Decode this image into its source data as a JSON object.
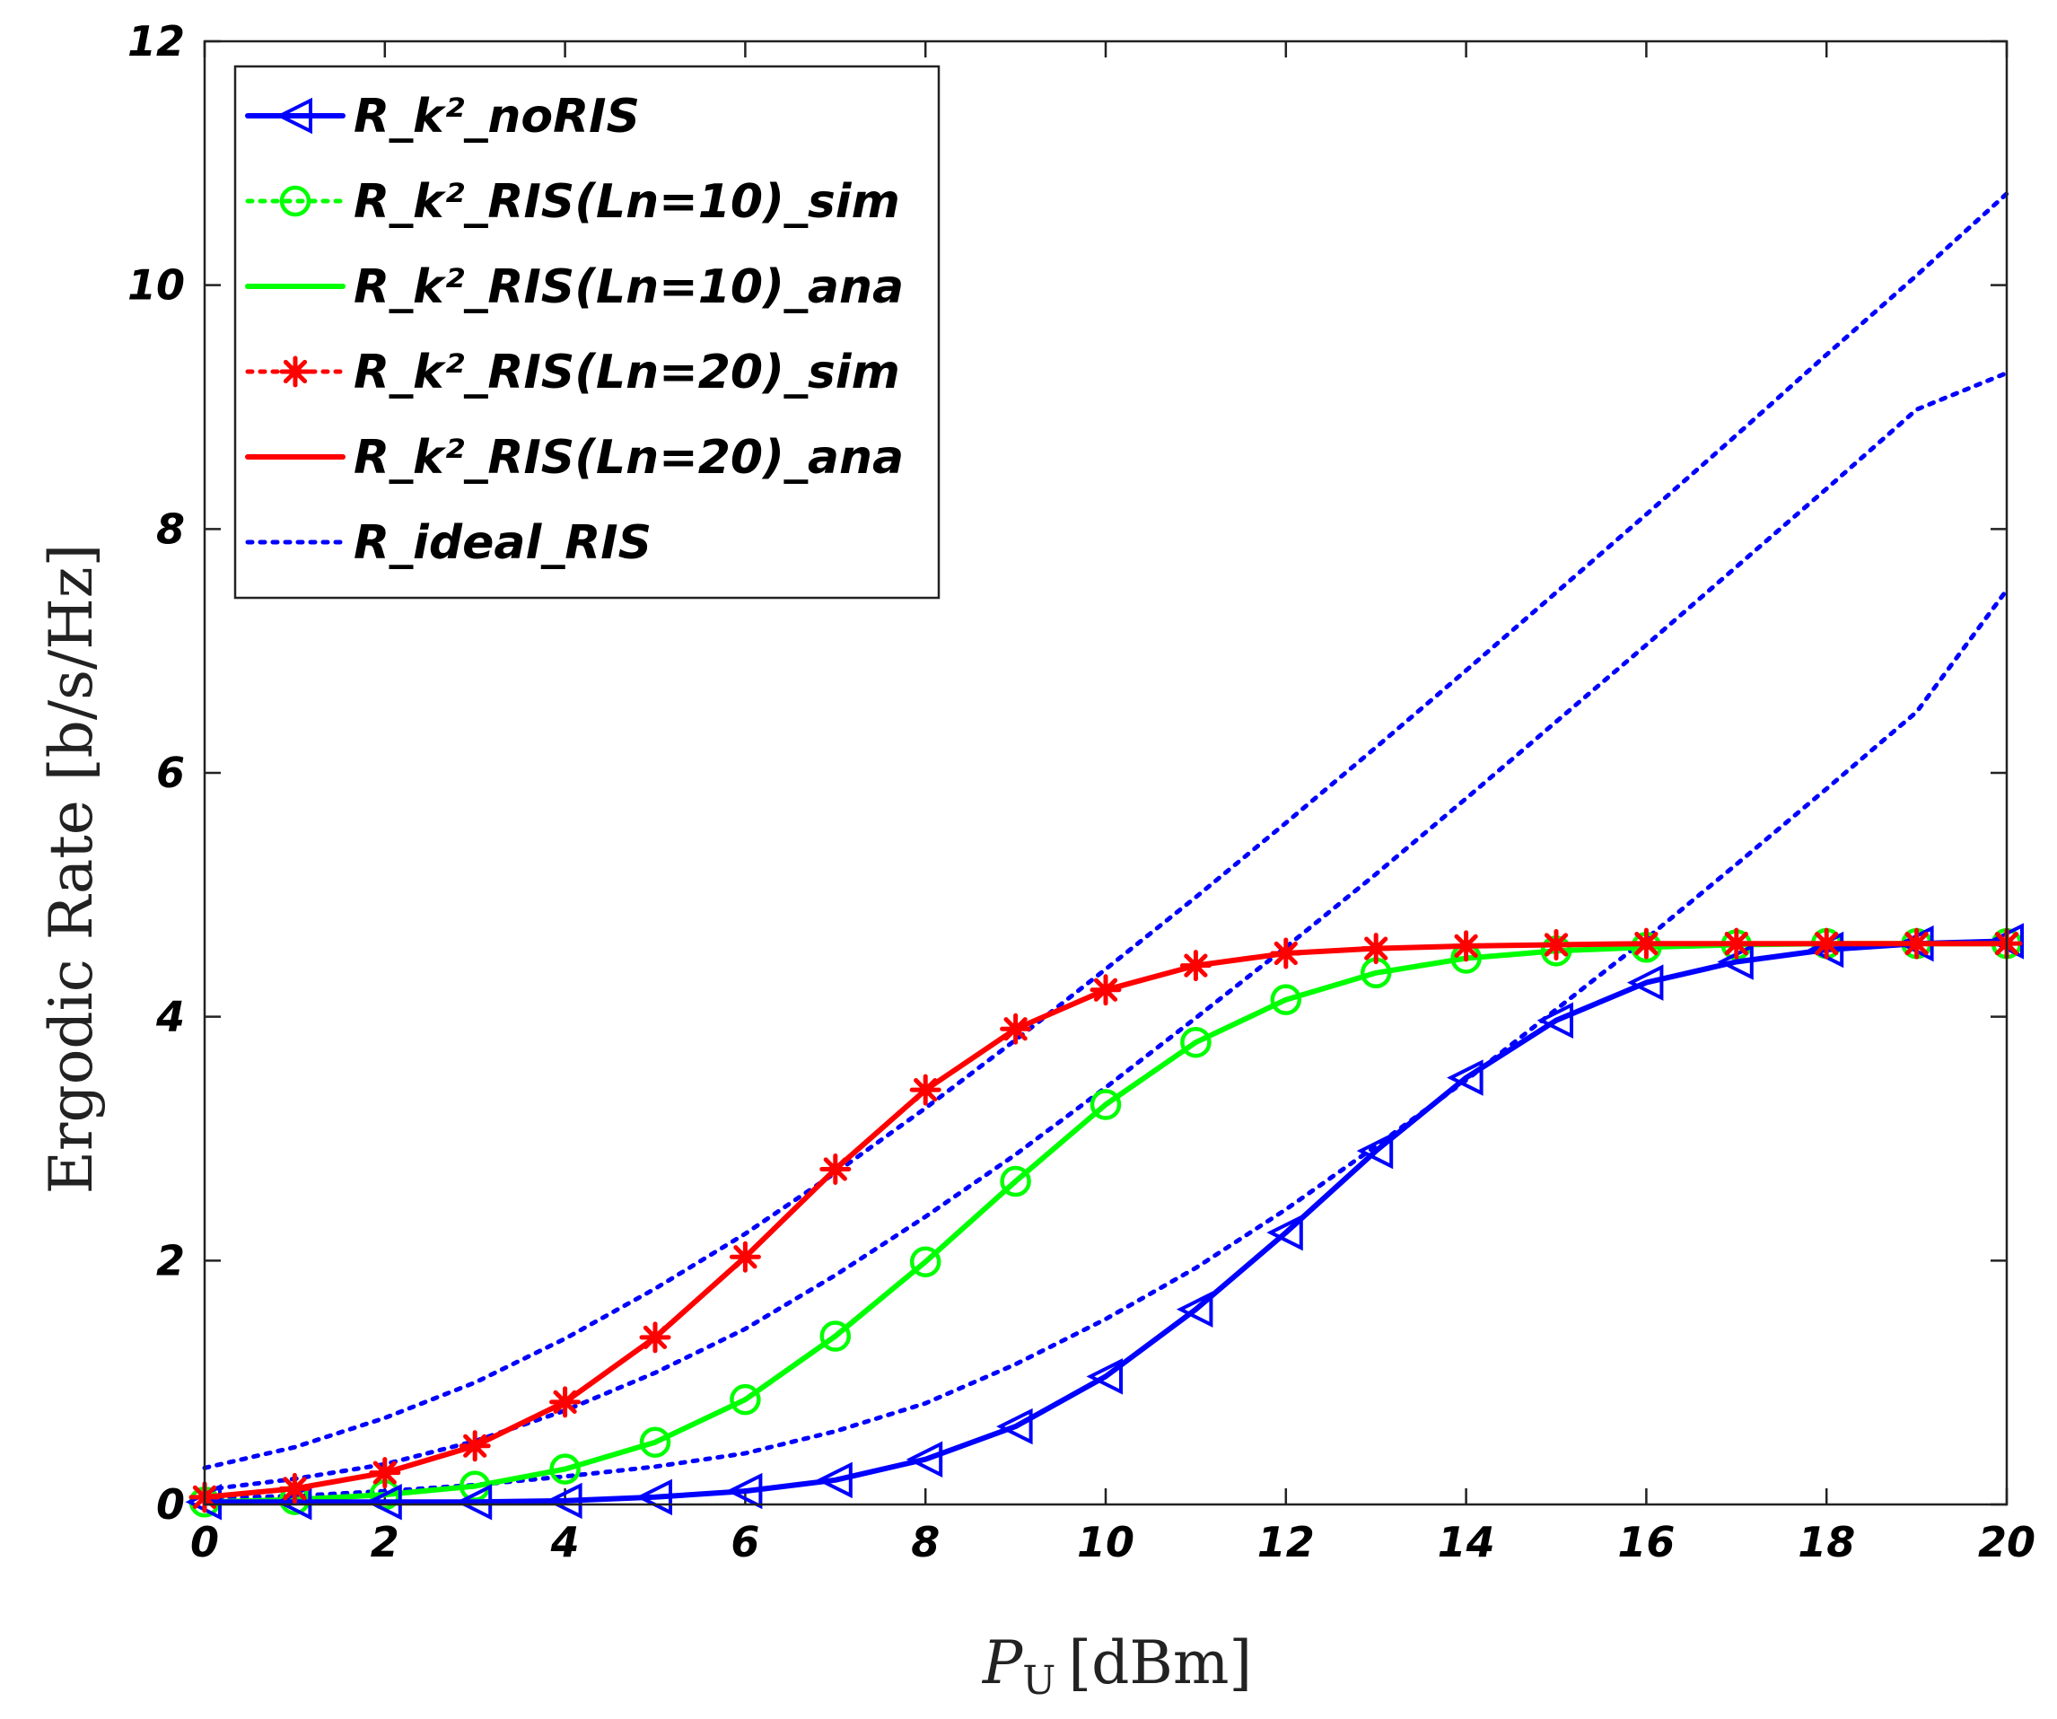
{
  "chart_data": {
    "type": "line",
    "xlabel_base": "P",
    "xlabel_sub": "U",
    "xlabel_unit": "[dBm]",
    "ylabel": "Ergodic Rate [b/s/Hz]",
    "xlim": [
      0,
      20
    ],
    "ylim": [
      0,
      12
    ],
    "xticks": [
      "0",
      "2",
      "4",
      "6",
      "8",
      "10",
      "12",
      "14",
      "16",
      "18",
      "20"
    ],
    "yticks": [
      "0",
      "2",
      "4",
      "6",
      "8",
      "10",
      "12"
    ],
    "legend_position": "top-left",
    "x": [
      0,
      1,
      2,
      3,
      4,
      5,
      6,
      7,
      8,
      9,
      10,
      11,
      12,
      13,
      14,
      15,
      16,
      17,
      18,
      19,
      20
    ],
    "series": [
      {
        "key": "noris",
        "name": "R_k²_noRIS",
        "color": "#0000ff",
        "line": "solid",
        "marker": "triangle-left",
        "values": [
          0.02,
          0.02,
          0.02,
          0.02,
          0.03,
          0.06,
          0.11,
          0.2,
          0.37,
          0.64,
          1.05,
          1.6,
          2.23,
          2.9,
          3.5,
          3.97,
          4.28,
          4.45,
          4.55,
          4.6,
          4.62
        ]
      },
      {
        "key": "ris10_sim",
        "name": "R_k²_RIS(Ln=10)_sim",
        "color": "#00ff00",
        "line": "dotted",
        "marker": "circle",
        "values": [
          0.02,
          0.04,
          0.08,
          0.15,
          0.29,
          0.51,
          0.86,
          1.38,
          1.99,
          2.65,
          3.28,
          3.79,
          4.14,
          4.36,
          4.48,
          4.54,
          4.57,
          4.59,
          4.6,
          4.6,
          4.6
        ]
      },
      {
        "key": "ris10_ana",
        "name": "R_k²_RIS(Ln=10)_ana",
        "color": "#00ff00",
        "line": "solid",
        "marker": "none",
        "values": [
          0.02,
          0.04,
          0.08,
          0.15,
          0.29,
          0.51,
          0.86,
          1.38,
          1.99,
          2.65,
          3.28,
          3.79,
          4.14,
          4.36,
          4.48,
          4.54,
          4.57,
          4.59,
          4.6,
          4.6,
          4.6
        ]
      },
      {
        "key": "ris20_sim",
        "name": "R_k²_RIS(Ln=20)_sim",
        "color": "#ff0000",
        "line": "dotted",
        "marker": "star",
        "values": [
          0.06,
          0.13,
          0.26,
          0.48,
          0.84,
          1.37,
          2.03,
          2.75,
          3.4,
          3.9,
          4.22,
          4.42,
          4.52,
          4.56,
          4.58,
          4.59,
          4.6,
          4.6,
          4.6,
          4.6,
          4.6
        ]
      },
      {
        "key": "ris20_ana",
        "name": "R_k²_RIS(Ln=20)_ana",
        "color": "#ff0000",
        "line": "solid",
        "marker": "none",
        "values": [
          0.06,
          0.13,
          0.26,
          0.48,
          0.84,
          1.37,
          2.03,
          2.75,
          3.4,
          3.9,
          4.22,
          4.42,
          4.52,
          4.56,
          4.58,
          4.59,
          4.6,
          4.6,
          4.6,
          4.6,
          4.6
        ]
      },
      {
        "key": "ideal",
        "name": "R_ideal_RIS",
        "color": "#0000ff",
        "line": "dotted",
        "marker": "none",
        "legend": true,
        "values": [
          0.3,
          0.47,
          0.71,
          1.0,
          1.36,
          1.77,
          2.22,
          2.72,
          3.25,
          3.81,
          4.39,
          4.98,
          5.59,
          6.21,
          6.84,
          7.48,
          8.12,
          8.77,
          9.43,
          10.08,
          10.75
        ]
      },
      {
        "key": "ideal2",
        "name": "R_ideal_RIS",
        "color": "#0000ff",
        "line": "dotted",
        "marker": "none",
        "legend": false,
        "values": [
          0.12,
          0.21,
          0.33,
          0.52,
          0.77,
          1.08,
          1.44,
          1.88,
          2.36,
          2.87,
          3.42,
          3.99,
          4.57,
          5.17,
          5.79,
          6.42,
          7.05,
          7.69,
          8.33,
          8.98,
          9.28
        ]
      },
      {
        "key": "ideal3",
        "name": "R_ideal_RIS",
        "color": "#0000ff",
        "line": "dotted",
        "marker": "none",
        "legend": false,
        "values": [
          0.05,
          0.07,
          0.11,
          0.16,
          0.23,
          0.31,
          0.42,
          0.6,
          0.83,
          1.15,
          1.52,
          1.94,
          2.42,
          2.94,
          3.48,
          4.06,
          4.64,
          5.25,
          5.87,
          6.5,
          7.5
        ]
      }
    ]
  }
}
